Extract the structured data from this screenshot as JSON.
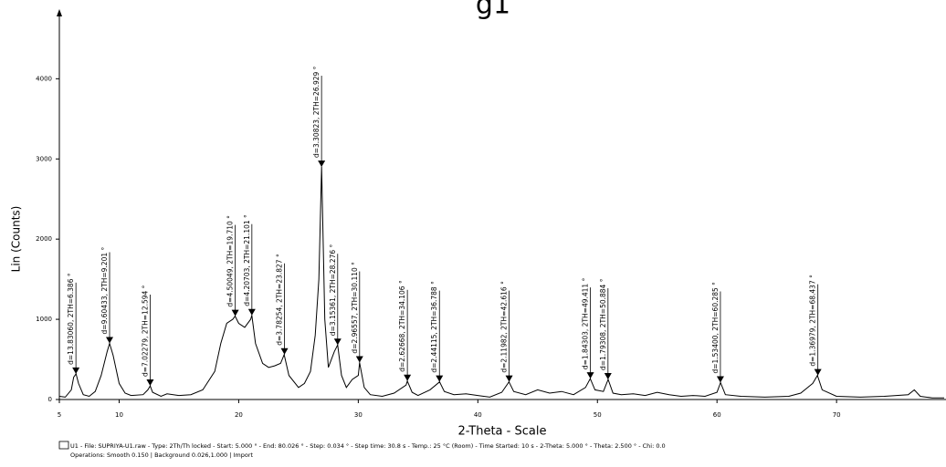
{
  "chart_data": {
    "type": "line",
    "title": "g1",
    "xlabel": "2-Theta - Scale",
    "ylabel": "Lin (Counts)",
    "xlim": [
      5,
      79
    ],
    "xticks": [
      5,
      10,
      20,
      30,
      40,
      50,
      60,
      70
    ],
    "ylim": [
      0,
      4800
    ],
    "yticks": [
      0,
      1000,
      2000,
      3000,
      4000
    ],
    "series": [
      {
        "name": "U1",
        "color": "#000000",
        "x": [
          5,
          5.5,
          6,
          6.2,
          6.4,
          6.6,
          7,
          7.5,
          8,
          8.5,
          9,
          9.2,
          9.5,
          10,
          10.5,
          11,
          12,
          12.4,
          12.6,
          12.8,
          13.5,
          14,
          15,
          16,
          17,
          18,
          18.5,
          19,
          19.5,
          19.7,
          20,
          20.5,
          21,
          21.1,
          21.4,
          22,
          22.5,
          23,
          23.5,
          23.8,
          24.2,
          25,
          25.5,
          26,
          26.4,
          26.7,
          26.93,
          27.2,
          27.5,
          28,
          28.28,
          28.6,
          29,
          29.5,
          30,
          30.11,
          30.5,
          31,
          32,
          33,
          34,
          34.1,
          34.5,
          35,
          36,
          36.8,
          37.2,
          38,
          39,
          40,
          41,
          42,
          42.6,
          43,
          44,
          45,
          46,
          47,
          48,
          49,
          49.4,
          49.8,
          50.5,
          50.9,
          51.3,
          52,
          53,
          54,
          55,
          56,
          57,
          58,
          59,
          60,
          60.3,
          60.7,
          62,
          64,
          66,
          67,
          68,
          68.4,
          68.8,
          70,
          72,
          74,
          76,
          76.5,
          77,
          78,
          79
        ],
        "values": [
          40,
          30,
          120,
          280,
          320,
          200,
          60,
          40,
          100,
          300,
          600,
          700,
          550,
          200,
          80,
          50,
          60,
          120,
          170,
          90,
          40,
          70,
          50,
          60,
          120,
          350,
          700,
          950,
          1000,
          1040,
          950,
          900,
          1000,
          1050,
          700,
          450,
          400,
          420,
          450,
          560,
          300,
          150,
          200,
          350,
          800,
          1500,
          2900,
          1000,
          400,
          600,
          680,
          300,
          150,
          250,
          300,
          460,
          150,
          60,
          40,
          80,
          180,
          230,
          90,
          50,
          120,
          220,
          100,
          60,
          70,
          50,
          30,
          90,
          220,
          100,
          60,
          120,
          80,
          100,
          60,
          150,
          260,
          120,
          100,
          250,
          80,
          60,
          70,
          50,
          90,
          60,
          40,
          50,
          40,
          90,
          210,
          60,
          40,
          30,
          40,
          80,
          200,
          300,
          120,
          40,
          30,
          40,
          60,
          120,
          40,
          20,
          20
        ]
      }
    ],
    "annotations": [
      {
        "label": "d=13.83060, 2TH=6.386 °",
        "x": 6.386,
        "y": 320
      },
      {
        "label": "d=9.60433, 2TH=9.201 °",
        "x": 9.201,
        "y": 700
      },
      {
        "label": "d=7.02279, 2TH=12.594 °",
        "x": 12.594,
        "y": 170
      },
      {
        "label": "d=4.50049, 2TH=19.710 °",
        "x": 19.71,
        "y": 1040
      },
      {
        "label": "d=4.20703, 2TH=21.101 °",
        "x": 21.101,
        "y": 1050
      },
      {
        "label": "d=3.78254, 2TH=23.827 °",
        "x": 23.827,
        "y": 560
      },
      {
        "label": "d=3.30823, 2TH=26.929 °",
        "x": 26.929,
        "y": 2900
      },
      {
        "label": "d=3.15361, 2TH=28.276 °",
        "x": 28.276,
        "y": 680
      },
      {
        "label": "d=2.96557, 2TH=30.110 °",
        "x": 30.11,
        "y": 460
      },
      {
        "label": "d=2.62668, 2TH=34.106 °",
        "x": 34.106,
        "y": 230
      },
      {
        "label": "d=2.44115, 2TH=36.788 °",
        "x": 36.788,
        "y": 220
      },
      {
        "label": "d=2.11982, 2TH=42.616 °",
        "x": 42.616,
        "y": 220
      },
      {
        "label": "d=1.84303, 2TH=49.411 °",
        "x": 49.411,
        "y": 260
      },
      {
        "label": "d=1.79308, 2TH=50.884 °",
        "x": 50.884,
        "y": 250
      },
      {
        "label": "d=1.53400, 2TH=60.285 °",
        "x": 60.285,
        "y": 210
      },
      {
        "label": "d=1.36979, 2TH=68.437 °",
        "x": 68.437,
        "y": 300
      }
    ],
    "footer": [
      "U1 - File: SUPRIYA-U1.raw - Type: 2Th/Th locked - Start: 5.000 ° - End: 80.026 ° - Step: 0.034 ° - Step time: 30.8 s - Temp.: 25 °C (Room) - Time Started: 10 s - 2-Theta: 5.000 ° - Theta: 2.500 ° - Chi: 0.0",
      "Operations: Smooth 0.150 | Background 0.026,1.000 | Import"
    ]
  }
}
